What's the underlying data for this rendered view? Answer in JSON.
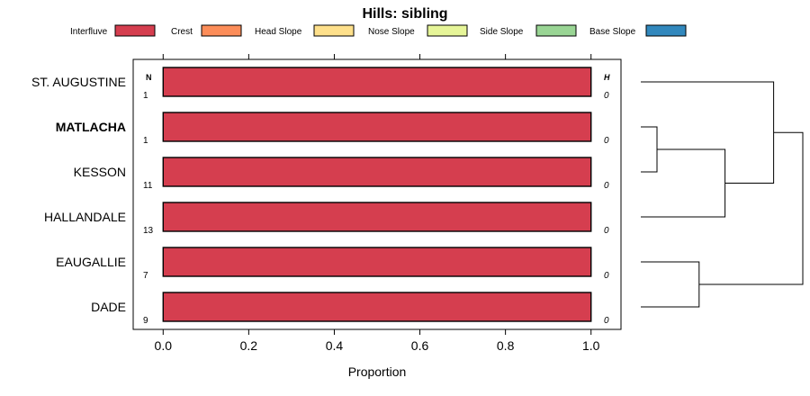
{
  "chart_data": {
    "type": "bar",
    "orientation": "horizontal",
    "stacked": true,
    "title": "Hills: sibling",
    "xlabel": "Proportion",
    "xlim": [
      -0.07,
      1.07
    ],
    "xticks": [
      0.0,
      0.2,
      0.4,
      0.6,
      0.8,
      1.0
    ],
    "xtick_labels": [
      "0.0",
      "0.2",
      "0.4",
      "0.6",
      "0.8",
      "1.0"
    ],
    "n_header": "N",
    "h_header": "H",
    "legend_position": "top",
    "legend": [
      {
        "name": "Interfluve",
        "color": "#d53e4f"
      },
      {
        "name": "Crest",
        "color": "#fc8d59"
      },
      {
        "name": "Head Slope",
        "color": "#fee08b"
      },
      {
        "name": "Nose Slope",
        "color": "#e6f598"
      },
      {
        "name": "Side Slope",
        "color": "#99d594"
      },
      {
        "name": "Base Slope",
        "color": "#3288bd"
      }
    ],
    "categories": [
      "ST. AUGUSTINE",
      "MATLACHA",
      "KESSON",
      "HALLANDALE",
      "EAUGALLIE",
      "DADE"
    ],
    "highlight": "MATLACHA",
    "n_values": [
      "1",
      "1",
      "11",
      "13",
      "7",
      "9"
    ],
    "h_values": [
      "0",
      "0",
      "0",
      "0",
      "0",
      "0"
    ],
    "series": [
      {
        "name": "Interfluve",
        "values": [
          1,
          1,
          1,
          1,
          1,
          1
        ]
      },
      {
        "name": "Crest",
        "values": [
          0,
          0,
          0,
          0,
          0,
          0
        ]
      },
      {
        "name": "Head Slope",
        "values": [
          0,
          0,
          0,
          0,
          0,
          0
        ]
      },
      {
        "name": "Nose Slope",
        "values": [
          0,
          0,
          0,
          0,
          0,
          0
        ]
      },
      {
        "name": "Side Slope",
        "values": [
          0,
          0,
          0,
          0,
          0,
          0
        ]
      },
      {
        "name": "Base Slope",
        "values": [
          0,
          0,
          0,
          0,
          0,
          0
        ]
      }
    ],
    "dendrogram": {
      "merges": [
        {
          "left": "MATLACHA",
          "right": "KESSON",
          "height": 0.1
        },
        {
          "left": "EAUGALLIE",
          "right": "DADE",
          "height": 0.36
        },
        {
          "left": "MATLACHA+KESSON",
          "right": "HALLANDALE",
          "height": 0.52
        },
        {
          "left": "ST. AUGUSTINE",
          "right": "MATLACHA+KESSON+HALLANDALE",
          "height": 0.82
        },
        {
          "left": "ST. AUGUSTINE+MATLACHA+KESSON+HALLANDALE",
          "right": "EAUGALLIE+DADE",
          "height": 1.0
        }
      ]
    }
  }
}
